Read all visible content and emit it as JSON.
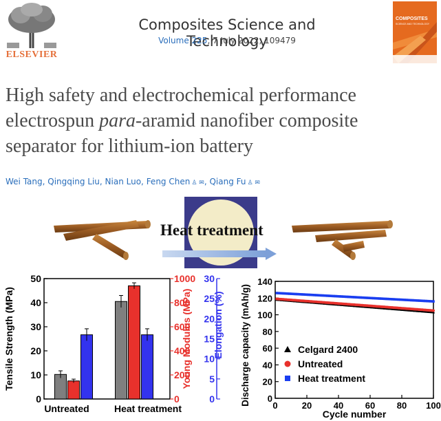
{
  "header": {
    "journal_title": "Composites Science and Technology",
    "volume_link": "Volume 225",
    "issue_info": ", 7 July 2022, 109479",
    "publisher_logo_text": "ELSEVIER",
    "cover_title": "COMPOSITES",
    "cover_subtitle": "SCIENCE AND TECHNOLOGY"
  },
  "article": {
    "title_line1": "High safety and electrochemical performance",
    "title_line2_pre": "electrospun ",
    "title_line2_italic": "para",
    "title_line2_post": "-aramid nanofiber composite",
    "title_line3": "separator for lithium-ion battery",
    "authors": [
      {
        "name": "Wei Tang",
        "icons": ""
      },
      {
        "name": "Qingqing Liu",
        "icons": ""
      },
      {
        "name": "Nian Luo",
        "icons": ""
      },
      {
        "name": "Feng Chen",
        "icons": "♙ ✉"
      },
      {
        "name": "Qiang Fu",
        "icons": "♙ ✉"
      }
    ]
  },
  "graphical_abstract": {
    "process_label": "Heat treatment",
    "bar_chart_data": {
      "type": "bar",
      "categories": [
        "Untreated",
        "Heat treatment"
      ],
      "series": [
        {
          "name": "Tensile Strength (MPa)",
          "values": [
            10.2,
            40.5
          ],
          "errors": [
            1.5,
            2.5
          ],
          "color": "#7f7f7f",
          "axis": "left"
        },
        {
          "name": "Young Modulus (MPa)",
          "values": [
            150,
            940
          ],
          "errors": [
            15,
            25
          ],
          "color": "#e8312c",
          "axis": "middle"
        },
        {
          "name": "Elongation (%)",
          "values": [
            16,
            16
          ],
          "errors": [
            1.5,
            1.5
          ],
          "color": "#3333ee",
          "axis": "right"
        }
      ],
      "left_axis": {
        "label": "Tensile Strength (MPa)",
        "min": 0,
        "max": 50,
        "ticks": [
          "0",
          "10",
          "20",
          "30",
          "40",
          "50"
        ],
        "color": "#000000"
      },
      "middle_axis": {
        "label": "Young Modulus (MPa)",
        "min": 0,
        "max": 1000,
        "ticks": [
          "0",
          "200",
          "400",
          "600",
          "800",
          "1000"
        ],
        "color": "#e8312c"
      },
      "right_axis": {
        "label": "Elongation (%)",
        "min": 0,
        "max": 30,
        "ticks": [
          "0",
          "5",
          "10",
          "15",
          "20",
          "25",
          "30"
        ],
        "color": "#3333ee"
      }
    },
    "line_chart_data": {
      "type": "scatter",
      "ylabel": "Discharge capacity (mAh/g)",
      "xlabel": "Cycle number",
      "xlim": [
        0,
        100
      ],
      "ylim": [
        0,
        140
      ],
      "xticks": [
        "0",
        "20",
        "40",
        "60",
        "80",
        "100"
      ],
      "yticks": [
        "0",
        "20",
        "40",
        "60",
        "80",
        "100",
        "120",
        "140"
      ],
      "series": [
        {
          "name": "Celgard 2400",
          "marker": "triangle",
          "color": "#000000",
          "start": 118,
          "end": 103
        },
        {
          "name": "Untreated",
          "marker": "circle",
          "color": "#e8312c",
          "start": 119,
          "end": 105
        },
        {
          "name": "Heat treatment",
          "marker": "square",
          "color": "#1a3ef0",
          "start": 126,
          "end": 116
        }
      ]
    }
  }
}
